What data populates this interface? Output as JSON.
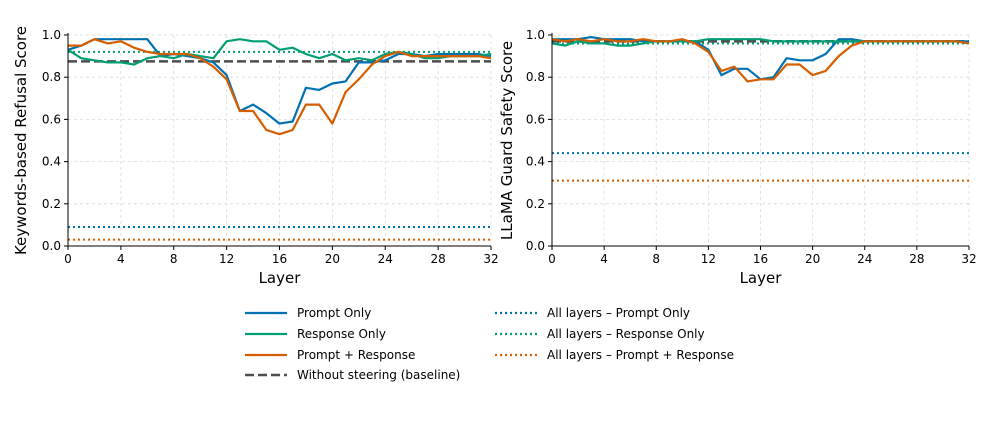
{
  "colors": {
    "prompt": "#0072b2",
    "response": "#009e73",
    "both": "#d55e00",
    "baseline": "#4d4d4d",
    "grid": "#d9d9d9"
  },
  "legend": [
    {
      "label": "Prompt Only",
      "color": "#0072b2",
      "style": "solid"
    },
    {
      "label": "Response Only",
      "color": "#009e73",
      "style": "solid"
    },
    {
      "label": "Prompt + Response",
      "color": "#d55e00",
      "style": "solid"
    },
    {
      "label": "Without steering (baseline)",
      "color": "#4d4d4d",
      "style": "dashed"
    },
    {
      "label": "All layers – Prompt Only",
      "color": "#0072b2",
      "style": "dotted"
    },
    {
      "label": "All layers – Response Only",
      "color": "#009e73",
      "style": "dotted"
    },
    {
      "label": "All layers – Prompt + Response",
      "color": "#d55e00",
      "style": "dotted"
    }
  ],
  "chart_data": [
    {
      "type": "line",
      "xlabel": "Layer",
      "ylabel": "Keywords-based Refusal Score",
      "xlim": [
        0,
        32
      ],
      "ylim": [
        0,
        1.0
      ],
      "xticks": [
        "0",
        "4",
        "8",
        "12",
        "16",
        "20",
        "24",
        "28",
        "32"
      ],
      "yticks": [
        "0.0",
        "0.2",
        "0.4",
        "0.6",
        "0.8",
        "1.0"
      ],
      "x": [
        0,
        1,
        2,
        3,
        4,
        5,
        6,
        7,
        8,
        9,
        10,
        11,
        12,
        13,
        14,
        15,
        16,
        17,
        18,
        19,
        20,
        21,
        22,
        23,
        24,
        25,
        26,
        27,
        28,
        29,
        30,
        31,
        32
      ],
      "series": [
        {
          "name": "Prompt Only",
          "color": "#0072b2",
          "values": [
            0.93,
            0.95,
            0.98,
            0.98,
            0.98,
            0.98,
            0.98,
            0.9,
            0.91,
            0.9,
            0.89,
            0.87,
            0.81,
            0.64,
            0.67,
            0.63,
            0.58,
            0.59,
            0.75,
            0.74,
            0.77,
            0.78,
            0.87,
            0.87,
            0.88,
            0.91,
            0.91,
            0.9,
            0.91,
            0.91,
            0.91,
            0.91,
            0.9
          ]
        },
        {
          "name": "Response Only",
          "color": "#009e73",
          "values": [
            0.93,
            0.89,
            0.88,
            0.87,
            0.87,
            0.86,
            0.89,
            0.9,
            0.89,
            0.91,
            0.9,
            0.89,
            0.97,
            0.98,
            0.97,
            0.97,
            0.93,
            0.94,
            0.91,
            0.89,
            0.91,
            0.88,
            0.89,
            0.88,
            0.91,
            0.92,
            0.91,
            0.89,
            0.89,
            0.9,
            0.9,
            0.9,
            0.91
          ]
        },
        {
          "name": "Prompt + Response",
          "color": "#d55e00",
          "values": [
            0.95,
            0.95,
            0.98,
            0.96,
            0.97,
            0.94,
            0.92,
            0.91,
            0.91,
            0.91,
            0.89,
            0.85,
            0.79,
            0.64,
            0.64,
            0.55,
            0.53,
            0.55,
            0.67,
            0.67,
            0.58,
            0.73,
            0.79,
            0.86,
            0.9,
            0.92,
            0.9,
            0.9,
            0.9,
            0.9,
            0.9,
            0.9,
            0.89
          ]
        }
      ],
      "hlines": [
        {
          "name": "Without steering (baseline)",
          "value": 0.875,
          "color": "#4d4d4d",
          "style": "dashed"
        },
        {
          "name": "All layers – Prompt Only",
          "value": 0.09,
          "color": "#0072b2",
          "style": "dotted"
        },
        {
          "name": "All layers – Response Only",
          "value": 0.92,
          "color": "#009e73",
          "style": "dotted"
        },
        {
          "name": "All layers – Prompt + Response",
          "value": 0.03,
          "color": "#d55e00",
          "style": "dotted"
        }
      ]
    },
    {
      "type": "line",
      "xlabel": "Layer",
      "ylabel": "LLaMA Guard Safety Score",
      "xlim": [
        0,
        32
      ],
      "ylim": [
        0,
        1.0
      ],
      "xticks": [
        "0",
        "4",
        "8",
        "12",
        "16",
        "20",
        "24",
        "28",
        "32"
      ],
      "yticks": [
        "0.0",
        "0.2",
        "0.4",
        "0.6",
        "0.8",
        "1.0"
      ],
      "x": [
        0,
        1,
        2,
        3,
        4,
        5,
        6,
        7,
        8,
        9,
        10,
        11,
        12,
        13,
        14,
        15,
        16,
        17,
        18,
        19,
        20,
        21,
        22,
        23,
        24,
        25,
        26,
        27,
        28,
        29,
        30,
        31,
        32
      ],
      "series": [
        {
          "name": "Prompt Only",
          "color": "#0072b2",
          "values": [
            0.98,
            0.98,
            0.98,
            0.99,
            0.98,
            0.98,
            0.98,
            0.97,
            0.97,
            0.97,
            0.97,
            0.97,
            0.93,
            0.81,
            0.84,
            0.84,
            0.79,
            0.8,
            0.89,
            0.88,
            0.88,
            0.91,
            0.98,
            0.98,
            0.97,
            0.97,
            0.97,
            0.97,
            0.97,
            0.97,
            0.97,
            0.97,
            0.97
          ]
        },
        {
          "name": "Response Only",
          "color": "#009e73",
          "values": [
            0.96,
            0.95,
            0.97,
            0.96,
            0.96,
            0.95,
            0.95,
            0.96,
            0.97,
            0.97,
            0.97,
            0.97,
            0.98,
            0.98,
            0.98,
            0.98,
            0.98,
            0.97,
            0.97,
            0.97,
            0.97,
            0.97,
            0.97,
            0.97,
            0.97,
            0.97,
            0.97,
            0.97,
            0.97,
            0.97,
            0.97,
            0.97,
            0.96
          ]
        },
        {
          "name": "Prompt + Response",
          "color": "#d55e00",
          "values": [
            0.98,
            0.97,
            0.98,
            0.97,
            0.98,
            0.97,
            0.97,
            0.98,
            0.97,
            0.97,
            0.98,
            0.96,
            0.92,
            0.83,
            0.85,
            0.78,
            0.79,
            0.79,
            0.86,
            0.86,
            0.81,
            0.83,
            0.9,
            0.95,
            0.97,
            0.97,
            0.97,
            0.97,
            0.97,
            0.97,
            0.97,
            0.97,
            0.96
          ]
        }
      ],
      "hlines": [
        {
          "name": "Without steering (baseline)",
          "value": 0.97,
          "color": "#4d4d4d",
          "style": "dashed"
        },
        {
          "name": "All layers – Prompt Only",
          "value": 0.44,
          "color": "#0072b2",
          "style": "dotted"
        },
        {
          "name": "All layers – Response Only",
          "value": 0.96,
          "color": "#009e73",
          "style": "dotted"
        },
        {
          "name": "All layers – Prompt + Response",
          "value": 0.31,
          "color": "#d55e00",
          "style": "dotted"
        }
      ]
    }
  ]
}
